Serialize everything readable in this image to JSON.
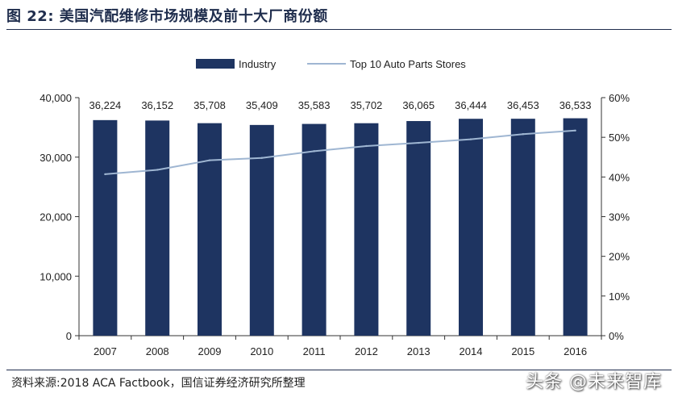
{
  "figure": {
    "title": "图 22:  美国汽配维修市场规模及前十大厂商份额",
    "source": "资料来源:2018 ACA Factbook，国信证券经济研究所整理",
    "watermark": "头条 @未来智库"
  },
  "chart_data": {
    "type": "bar",
    "categories": [
      "2007",
      "2008",
      "2009",
      "2010",
      "2011",
      "2012",
      "2013",
      "2014",
      "2015",
      "2016"
    ],
    "series": [
      {
        "name": "Industry",
        "type": "bar",
        "axis": "left",
        "color": "#1e3461",
        "values": [
          36224,
          36152,
          35708,
          35409,
          35583,
          35702,
          36065,
          36444,
          36453,
          36533
        ],
        "labels": [
          "36,224",
          "36,152",
          "35,708",
          "35,409",
          "35,583",
          "35,702",
          "36,065",
          "36,444",
          "36,453",
          "36,533"
        ]
      },
      {
        "name": "Top 10 Auto Parts Stores",
        "type": "line",
        "axis": "right",
        "color": "#9fb6d2",
        "values": [
          40.7,
          41.8,
          44.2,
          44.8,
          46.5,
          47.8,
          48.6,
          49.5,
          50.8,
          51.7
        ]
      }
    ],
    "y_left": {
      "min": 0,
      "max": 40000,
      "ticks": [
        0,
        10000,
        20000,
        30000,
        40000
      ],
      "tick_labels": [
        "0",
        "10,000",
        "20,000",
        "30,000",
        "40,000"
      ]
    },
    "y_right": {
      "min": 0,
      "max": 60,
      "ticks": [
        0,
        10,
        20,
        30,
        40,
        50,
        60
      ],
      "tick_labels": [
        "0%",
        "10%",
        "20%",
        "30%",
        "40%",
        "50%",
        "60%"
      ]
    },
    "legend": {
      "position": "top"
    },
    "grid": false
  }
}
